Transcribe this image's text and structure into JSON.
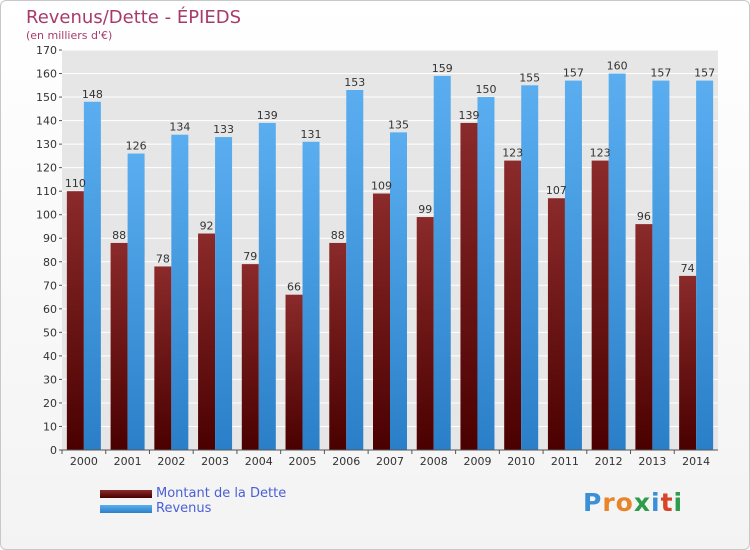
{
  "title": "Revenus/Dette - ÉPIEDS",
  "subtitle": "(en milliers d'€)",
  "logo": {
    "text": "Proxiti",
    "colors": [
      "#3a8fd6",
      "#e8842a",
      "#e8842a",
      "#2e9c4a",
      "#3a8fd6",
      "#d6442a",
      "#2e9c4a"
    ]
  },
  "colors": {
    "dette": "#8b2020",
    "revenus": "#4aa3e6"
  },
  "chart_data": {
    "type": "bar",
    "categories": [
      "2000",
      "2001",
      "2002",
      "2003",
      "2004",
      "2005",
      "2006",
      "2007",
      "2008",
      "2009",
      "2010",
      "2011",
      "2012",
      "2013",
      "2014"
    ],
    "series": [
      {
        "name": "Montant de la Dette",
        "values": [
          110,
          88,
          78,
          92,
          79,
          66,
          88,
          109,
          99,
          139,
          123,
          107,
          123,
          96,
          74
        ]
      },
      {
        "name": "Revenus",
        "values": [
          148,
          126,
          134,
          133,
          139,
          131,
          153,
          135,
          159,
          150,
          155,
          157,
          160,
          157,
          157
        ]
      }
    ],
    "ylim": [
      0,
      170
    ],
    "yticks": [
      0,
      10,
      20,
      30,
      40,
      50,
      60,
      70,
      80,
      90,
      100,
      110,
      120,
      130,
      140,
      150,
      160,
      170
    ],
    "grid": true,
    "legend": "bottom-left"
  }
}
